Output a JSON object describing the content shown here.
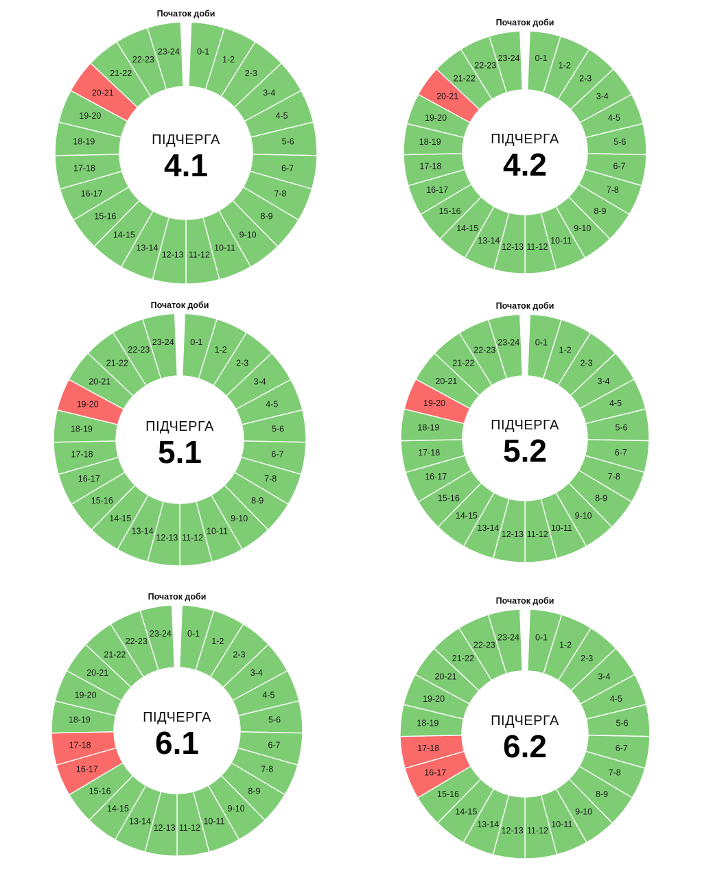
{
  "colors": {
    "on": "#7ecd74",
    "off": "#fa6a68",
    "separator": "#ffffff",
    "background": "#ffffff"
  },
  "start_label": "Початок доби",
  "subqueue_label": "ПІДЧЕРГА",
  "chart_data": [
    {
      "type": "pie",
      "variant": "24-hour donut schedule",
      "queue": "4.1",
      "categories": [
        "0-1",
        "1-2",
        "2-3",
        "3-4",
        "4-5",
        "5-6",
        "6-7",
        "7-8",
        "8-9",
        "9-10",
        "10-11",
        "11-12",
        "12-13",
        "13-14",
        "14-15",
        "15-16",
        "16-17",
        "17-18",
        "18-19",
        "19-20",
        "20-21",
        "21-22",
        "22-23",
        "23-24"
      ],
      "off_hours": [
        "20-21"
      ]
    },
    {
      "type": "pie",
      "variant": "24-hour donut schedule",
      "queue": "4.2",
      "categories": [
        "0-1",
        "1-2",
        "2-3",
        "3-4",
        "4-5",
        "5-6",
        "6-7",
        "7-8",
        "8-9",
        "9-10",
        "10-11",
        "11-12",
        "12-13",
        "13-14",
        "14-15",
        "15-16",
        "16-17",
        "17-18",
        "18-19",
        "19-20",
        "20-21",
        "21-22",
        "22-23",
        "23-24"
      ],
      "off_hours": [
        "20-21"
      ]
    },
    {
      "type": "pie",
      "variant": "24-hour donut schedule",
      "queue": "5.1",
      "categories": [
        "0-1",
        "1-2",
        "2-3",
        "3-4",
        "4-5",
        "5-6",
        "6-7",
        "7-8",
        "8-9",
        "9-10",
        "10-11",
        "11-12",
        "12-13",
        "13-14",
        "14-15",
        "15-16",
        "16-17",
        "17-18",
        "18-19",
        "19-20",
        "20-21",
        "21-22",
        "22-23",
        "23-24"
      ],
      "off_hours": [
        "19-20"
      ]
    },
    {
      "type": "pie",
      "variant": "24-hour donut schedule",
      "queue": "5.2",
      "categories": [
        "0-1",
        "1-2",
        "2-3",
        "3-4",
        "4-5",
        "5-6",
        "6-7",
        "7-8",
        "8-9",
        "9-10",
        "10-11",
        "11-12",
        "12-13",
        "13-14",
        "14-15",
        "15-16",
        "16-17",
        "17-18",
        "18-19",
        "19-20",
        "20-21",
        "21-22",
        "22-23",
        "23-24"
      ],
      "off_hours": [
        "19-20"
      ]
    },
    {
      "type": "pie",
      "variant": "24-hour donut schedule",
      "queue": "6.1",
      "categories": [
        "0-1",
        "1-2",
        "2-3",
        "3-4",
        "4-5",
        "5-6",
        "6-7",
        "7-8",
        "8-9",
        "9-10",
        "10-11",
        "11-12",
        "12-13",
        "13-14",
        "14-15",
        "15-16",
        "16-17",
        "17-18",
        "18-19",
        "19-20",
        "20-21",
        "21-22",
        "22-23",
        "23-24"
      ],
      "off_hours": [
        "16-17",
        "17-18"
      ]
    },
    {
      "type": "pie",
      "variant": "24-hour donut schedule",
      "queue": "6.2",
      "categories": [
        "0-1",
        "1-2",
        "2-3",
        "3-4",
        "4-5",
        "5-6",
        "6-7",
        "7-8",
        "8-9",
        "9-10",
        "10-11",
        "11-12",
        "12-13",
        "13-14",
        "14-15",
        "15-16",
        "16-17",
        "17-18",
        "18-19",
        "19-20",
        "20-21",
        "21-22",
        "22-23",
        "23-24"
      ],
      "off_hours": [
        "16-17",
        "17-18"
      ]
    }
  ]
}
